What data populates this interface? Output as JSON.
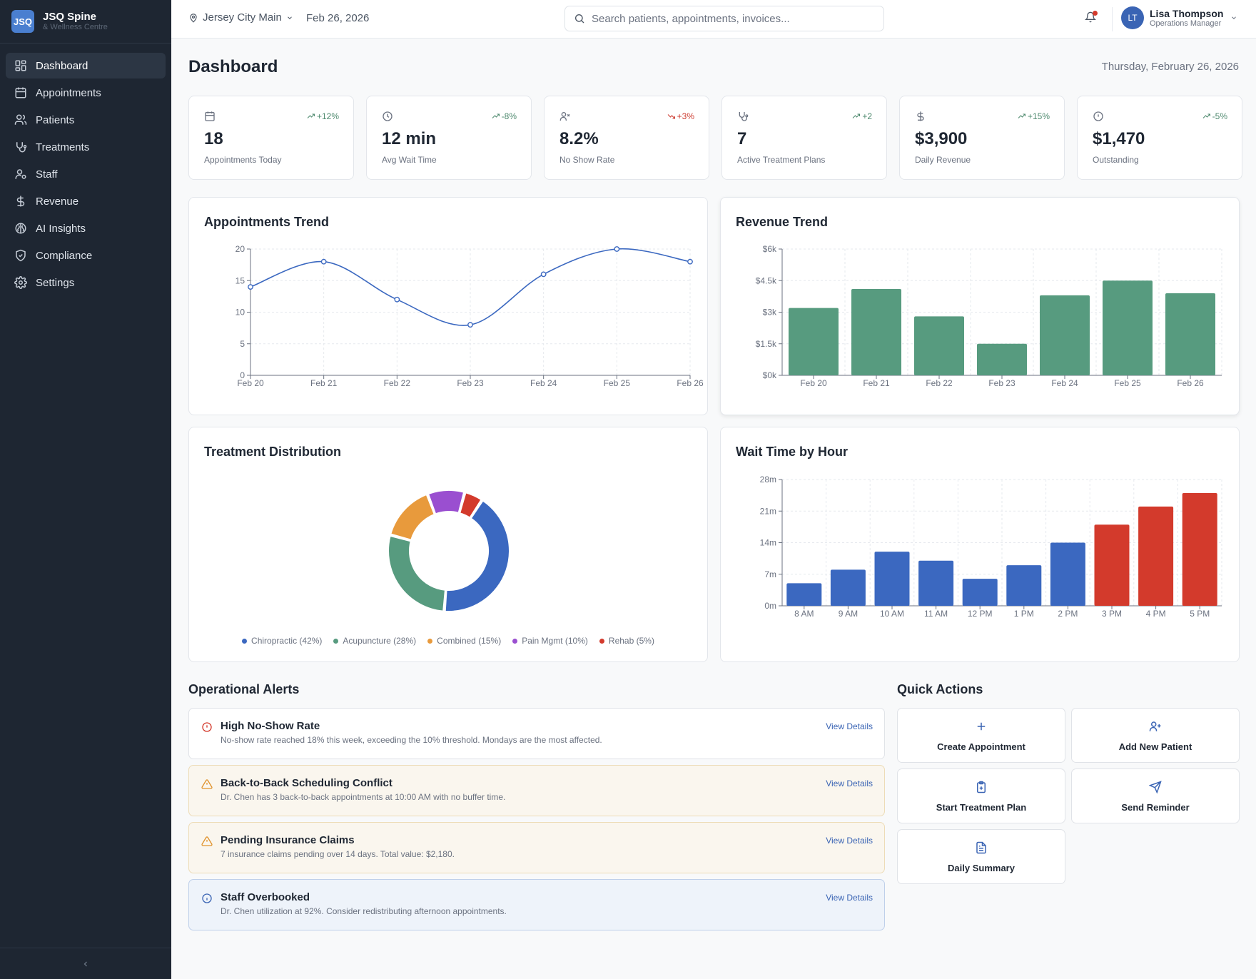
{
  "brand": {
    "logo": "JSQ",
    "title": "JSQ Spine",
    "subtitle": "& Wellness Centre"
  },
  "sidebar": {
    "items": [
      {
        "label": "Dashboard",
        "icon": "dashboard-icon",
        "active": true
      },
      {
        "label": "Appointments",
        "icon": "calendar-icon"
      },
      {
        "label": "Patients",
        "icon": "users-icon"
      },
      {
        "label": "Treatments",
        "icon": "stethoscope-icon"
      },
      {
        "label": "Staff",
        "icon": "staff-icon"
      },
      {
        "label": "Revenue",
        "icon": "dollar-icon"
      },
      {
        "label": "AI Insights",
        "icon": "brain-icon"
      },
      {
        "label": "Compliance",
        "icon": "shield-icon"
      },
      {
        "label": "Settings",
        "icon": "gear-icon"
      }
    ],
    "collapse_icon": "chevron-left-icon"
  },
  "topbar": {
    "location": "Jersey City Main",
    "date": "Feb 26, 2026",
    "search_placeholder": "Search patients, appointments, invoices...",
    "user": {
      "initials": "LT",
      "name": "Lisa Thompson",
      "role": "Operations Manager"
    }
  },
  "page": {
    "title": "Dashboard",
    "date": "Thursday, February 26, 2026"
  },
  "stats": [
    {
      "icon": "calendar-icon",
      "change": "+12%",
      "trend": "up",
      "value": "18",
      "label": "Appointments Today"
    },
    {
      "icon": "clock-icon",
      "change": "-8%",
      "trend": "up",
      "value": "12 min",
      "label": "Avg Wait Time"
    },
    {
      "icon": "user-x-icon",
      "change": "+3%",
      "trend": "down",
      "value": "8.2%",
      "label": "No Show Rate"
    },
    {
      "icon": "stethoscope-icon",
      "change": "+2",
      "trend": "up",
      "value": "7",
      "label": "Active Treatment Plans"
    },
    {
      "icon": "dollar-icon",
      "change": "+15%",
      "trend": "up",
      "value": "$3,900",
      "label": "Daily Revenue"
    },
    {
      "icon": "alert-circle-icon",
      "change": "-5%",
      "trend": "up",
      "value": "$1,470",
      "label": "Outstanding"
    }
  ],
  "colors": {
    "blue": "#3b68c0",
    "green": "#579b7f",
    "orange": "#e89a3c",
    "purple": "#9a4fd0",
    "red": "#d33a2c"
  },
  "chart_data": [
    {
      "type": "line",
      "title": "Appointments Trend",
      "categories": [
        "Feb 20",
        "Feb 21",
        "Feb 22",
        "Feb 23",
        "Feb 24",
        "Feb 25",
        "Feb 26"
      ],
      "values": [
        14,
        18,
        12,
        8,
        16,
        20,
        18
      ],
      "yticks": [
        "0",
        "5",
        "10",
        "15",
        "20"
      ],
      "ylim": [
        0,
        20
      ]
    },
    {
      "type": "bar",
      "title": "Revenue Trend",
      "categories": [
        "Feb 20",
        "Feb 21",
        "Feb 22",
        "Feb 23",
        "Feb 24",
        "Feb 25",
        "Feb 26"
      ],
      "values": [
        3200,
        4100,
        2800,
        1500,
        3800,
        4500,
        3900
      ],
      "yticks": [
        "$0k",
        "$1.5k",
        "$3k",
        "$4.5k",
        "$6k"
      ],
      "ylim": [
        0,
        6000
      ]
    },
    {
      "type": "pie",
      "title": "Treatment Distribution",
      "slices": [
        {
          "label": "Chiropractic (42%)",
          "value": 42,
          "color": "#3b68c0"
        },
        {
          "label": "Acupuncture (28%)",
          "value": 28,
          "color": "#579b7f"
        },
        {
          "label": "Combined (15%)",
          "value": 15,
          "color": "#e89a3c"
        },
        {
          "label": "Pain Mgmt (10%)",
          "value": 10,
          "color": "#9a4fd0"
        },
        {
          "label": "Rehab (5%)",
          "value": 5,
          "color": "#d33a2c"
        }
      ]
    },
    {
      "type": "bar",
      "title": "Wait Time by Hour",
      "categories": [
        "8 AM",
        "9 AM",
        "10 AM",
        "11 AM",
        "12 PM",
        "1 PM",
        "2 PM",
        "3 PM",
        "4 PM",
        "5 PM"
      ],
      "values": [
        5,
        8,
        12,
        10,
        6,
        9,
        14,
        18,
        22,
        25
      ],
      "colors": [
        "#3b68c0",
        "#3b68c0",
        "#3b68c0",
        "#3b68c0",
        "#3b68c0",
        "#3b68c0",
        "#3b68c0",
        "#d33a2c",
        "#d33a2c",
        "#d33a2c"
      ],
      "yticks": [
        "0m",
        "7m",
        "14m",
        "21m",
        "28m"
      ],
      "ylim": [
        0,
        28
      ]
    }
  ],
  "alerts_title": "Operational Alerts",
  "alerts": [
    {
      "type": "danger",
      "icon": "alert-circle-icon",
      "title": "High No-Show Rate",
      "desc": "No-show rate reached 18% this week, exceeding the 10% threshold. Mondays are the most affected.",
      "link": "View Details"
    },
    {
      "type": "warn",
      "icon": "warning-triangle-icon",
      "title": "Back-to-Back Scheduling Conflict",
      "desc": "Dr. Chen has 3 back-to-back appointments at 10:00 AM with no buffer time.",
      "link": "View Details"
    },
    {
      "type": "warn",
      "icon": "warning-triangle-icon",
      "title": "Pending Insurance Claims",
      "desc": "7 insurance claims pending over 14 days. Total value: $2,180.",
      "link": "View Details"
    },
    {
      "type": "info",
      "icon": "info-icon",
      "title": "Staff Overbooked",
      "desc": "Dr. Chen utilization at 92%. Consider redistributing afternoon appointments.",
      "link": "View Details"
    }
  ],
  "quick_actions_title": "Quick Actions",
  "quick_actions": [
    {
      "label": "Create Appointment",
      "icon": "plus-icon"
    },
    {
      "label": "Add New Patient",
      "icon": "user-plus-icon"
    },
    {
      "label": "Start Treatment Plan",
      "icon": "clipboard-plus-icon"
    },
    {
      "label": "Send Reminder",
      "icon": "send-icon"
    },
    {
      "label": "Daily Summary",
      "icon": "document-icon"
    }
  ]
}
